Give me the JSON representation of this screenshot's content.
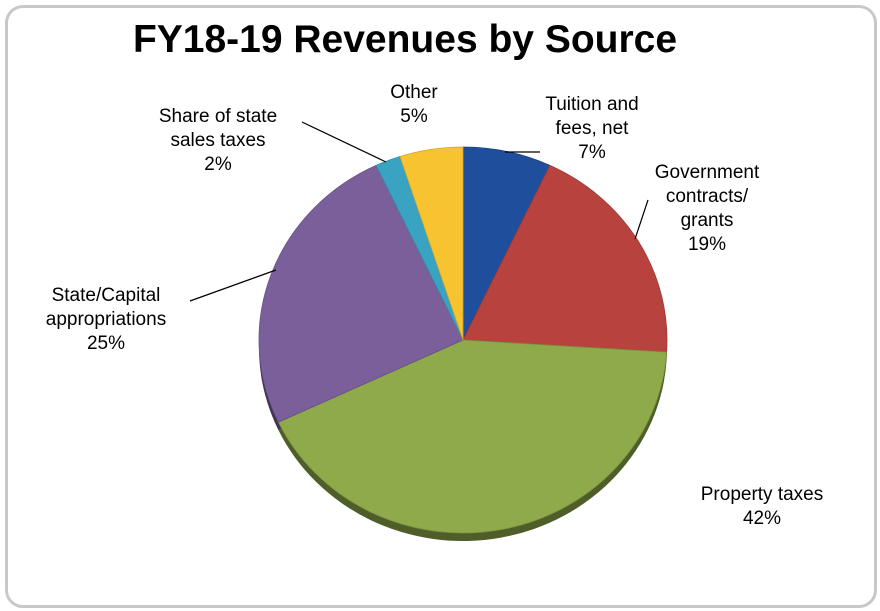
{
  "chart_data": {
    "type": "pie",
    "title": "FY18-19 Revenues by Source",
    "slices": [
      {
        "label_lines": [
          "Tuition and",
          "fees, net"
        ],
        "value": 7,
        "pct_text": "7%",
        "color": "#1f4e9c"
      },
      {
        "label_lines": [
          "Government",
          "contracts/",
          "grants"
        ],
        "value": 19,
        "pct_text": "19%",
        "color": "#b8423e"
      },
      {
        "label_lines": [
          "Property taxes"
        ],
        "value": 42,
        "pct_text": "42%",
        "color": "#8faa4a"
      },
      {
        "label_lines": [
          "State/Capital",
          "appropriations"
        ],
        "value": 25,
        "pct_text": "25%",
        "color": "#7a5f9a"
      },
      {
        "label_lines": [
          "Share of state",
          "sales taxes"
        ],
        "value": 2,
        "pct_text": "2%",
        "color": "#3aa3c2"
      },
      {
        "label_lines": [
          "Other"
        ],
        "value": 5,
        "pct_text": "5%",
        "color": "#f8c331"
      }
    ]
  }
}
